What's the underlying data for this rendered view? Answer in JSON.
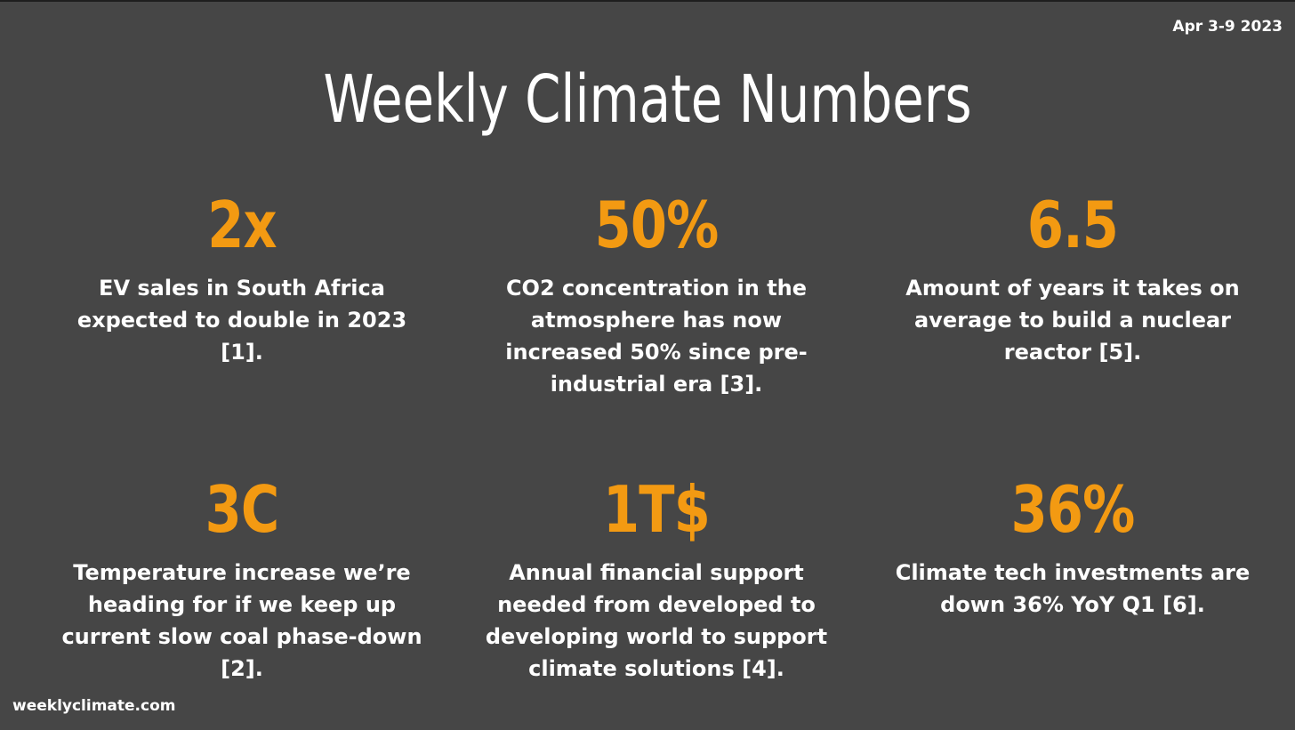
{
  "header": {
    "date": "Apr 3-9 2023",
    "title": "Weekly Climate Numbers"
  },
  "stats": [
    {
      "value": "2x",
      "description": "EV sales in South Africa expected to double in 2023 [1]."
    },
    {
      "value": "50%",
      "description": "CO2 concentration in the atmosphere has now increased 50% since pre-industrial era [3]."
    },
    {
      "value": "6.5",
      "description": "Amount of years it takes on average to build a nuclear reactor [5]."
    },
    {
      "value": "3C",
      "description": "Temperature increase we’re heading for if we keep up current slow coal phase-down [2]."
    },
    {
      "value": "1T$",
      "description": "Annual financial support needed from developed to developing world to support climate solutions [4]."
    },
    {
      "value": "36%",
      "description": "Climate tech investments are down 36% YoY Q1 [6]."
    }
  ],
  "footer": {
    "site": "weeklyclimate.com"
  },
  "colors": {
    "background": "#464646",
    "accent": "#f39a12",
    "text": "#ffffff"
  }
}
